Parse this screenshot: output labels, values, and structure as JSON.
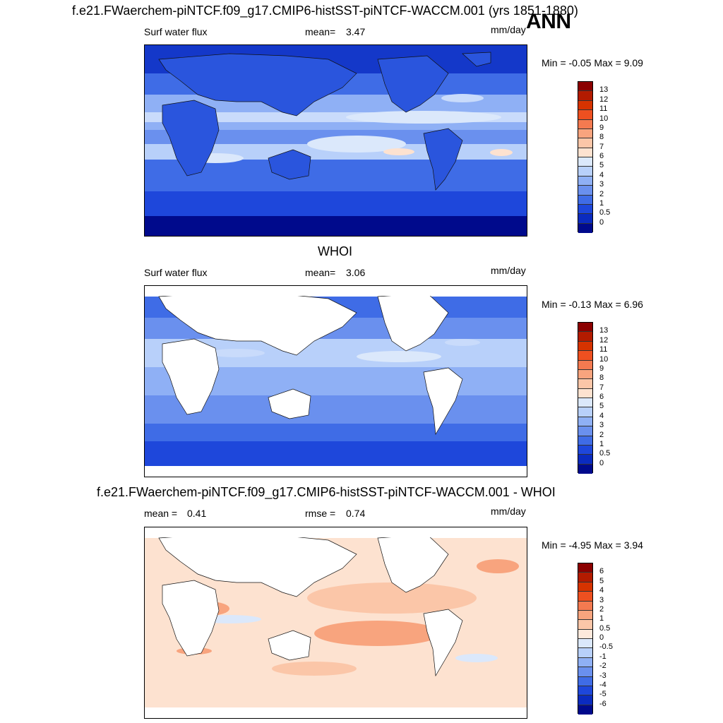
{
  "figure": {
    "season": "ANN"
  },
  "panels": [
    {
      "title": "f.e21.FWaerchem-piNTCF.f09_g17.CMIP6-histSST-piNTCF-WACCM.001 (yrs 1851-1880)",
      "left_label": "Surf water flux",
      "stat1_label": "mean=",
      "stat1_value": "3.47",
      "units": "mm/day",
      "minmax": "Min =  -0.05 Max =   9.09",
      "colorbar_labels": [
        "13",
        "12",
        "11",
        "10",
        "9",
        "8",
        "7",
        "6",
        "5",
        "4",
        "3",
        "2",
        "1",
        "0.5",
        "0"
      ],
      "colorbar_colors": [
        "#8b0000",
        "#b31b00",
        "#d63300",
        "#ee5020",
        "#f47a50",
        "#f8a47e",
        "#fbc6a8",
        "#fde2d0",
        "#dbe8fb",
        "#b8d0fa",
        "#8fb0f5",
        "#6a90ee",
        "#3f6ce6",
        "#1e47db",
        "#0b2bbf",
        "#000a8c"
      ]
    },
    {
      "title": "WHOI",
      "left_label": "Surf water flux",
      "stat1_label": "mean=",
      "stat1_value": "3.06",
      "units": "mm/day",
      "minmax": "Min =  -0.13 Max =   6.96",
      "colorbar_labels": [
        "13",
        "12",
        "11",
        "10",
        "9",
        "8",
        "7",
        "6",
        "5",
        "4",
        "3",
        "2",
        "1",
        "0.5",
        "0"
      ],
      "colorbar_colors": [
        "#8b0000",
        "#b31b00",
        "#d63300",
        "#ee5020",
        "#f47a50",
        "#f8a47e",
        "#fbc6a8",
        "#fde2d0",
        "#dbe8fb",
        "#b8d0fa",
        "#8fb0f5",
        "#6a90ee",
        "#3f6ce6",
        "#1e47db",
        "#0b2bbf",
        "#000a8c"
      ]
    },
    {
      "title": "f.e21.FWaerchem-piNTCF.f09_g17.CMIP6-histSST-piNTCF-WACCM.001 - WHOI",
      "left_label": "mean =",
      "left_value": "0.41",
      "stat1_label": "rmse =",
      "stat1_value": "0.74",
      "units": "mm/day",
      "minmax": "Min =  -4.95 Max =   3.94",
      "colorbar_labels": [
        "6",
        "5",
        "4",
        "3",
        "2",
        "1",
        "0.5",
        "0",
        "-0.5",
        "-1",
        "-2",
        "-3",
        "-4",
        "-5",
        "-6"
      ],
      "colorbar_colors": [
        "#8b0000",
        "#b31b00",
        "#d63300",
        "#ee5020",
        "#f47a50",
        "#f8a47e",
        "#fbc6a8",
        "#fde9dc",
        "#dbe8fb",
        "#b8d0fa",
        "#8fb0f5",
        "#6a90ee",
        "#3f6ce6",
        "#1e47db",
        "#0b2bbf",
        "#000a8c"
      ]
    }
  ],
  "colors": {
    "deep_blue": "#1d48d8",
    "mid_blue": "#3f6ce6",
    "light_blue": "#8fb0f5",
    "pale_blue": "#c9dbfb",
    "salmon": "#f8a47e",
    "pale_salmon": "#fde2d0",
    "land": "#ffffff"
  }
}
